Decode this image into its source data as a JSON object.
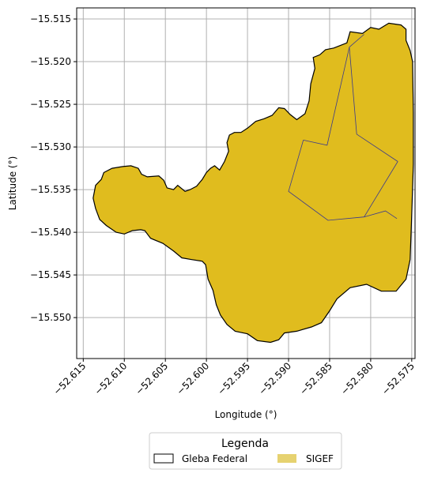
{
  "chart_data": {
    "type": "map",
    "xlabel": "Longitude (°)",
    "ylabel": "Latitude (°)",
    "xlim": [
      -52.6158,
      -52.5746
    ],
    "ylim": [
      -15.5548,
      -15.5137
    ],
    "xticks": [
      -52.615,
      -52.61,
      -52.605,
      -52.6,
      -52.595,
      -52.59,
      -52.585,
      -52.58,
      -52.575
    ],
    "xtick_labels": [
      "−52.615",
      "−52.610",
      "−52.605",
      "−52.600",
      "−52.595",
      "−52.590",
      "−52.585",
      "−52.580",
      "−52.575"
    ],
    "yticks": [
      -15.515,
      -15.52,
      -15.525,
      -15.53,
      -15.535,
      -15.54,
      -15.545,
      -15.55
    ],
    "ytick_labels": [
      "−15.515",
      "−15.520",
      "−15.525",
      "−15.530",
      "−15.535",
      "−15.540",
      "−15.545",
      "−15.550"
    ],
    "grid": true,
    "legend": {
      "title": "Legenda",
      "placement": "bottom-center",
      "entries": [
        "Gleba Federal",
        "SIGEF"
      ]
    },
    "colors": {
      "gleba_fill": "#ffffff",
      "gleba_edge": "#000000",
      "sigef_fill": "#e0bc1e",
      "sigef_legend_fill": "#e6d270",
      "parcel_edge": "#3b3a8c",
      "grid": "#b0b0b0"
    },
    "gleba_polygon": [
      [
        -52.5845,
        -15.5184
      ],
      [
        -52.5829,
        -15.5178
      ],
      [
        -52.5825,
        -15.5165
      ],
      [
        -52.581,
        -15.5167
      ],
      [
        -52.58,
        -15.516
      ],
      [
        -52.579,
        -15.5162
      ],
      [
        -52.5778,
        -15.5155
      ],
      [
        -52.5763,
        -15.5157
      ],
      [
        -52.5757,
        -15.5162
      ],
      [
        -52.5757,
        -15.5175
      ],
      [
        -52.5752,
        -15.5187
      ],
      [
        -52.5749,
        -15.52
      ],
      [
        -52.5748,
        -15.526
      ],
      [
        -52.5748,
        -15.532
      ],
      [
        -52.575,
        -15.538
      ],
      [
        -52.5752,
        -15.5432
      ],
      [
        -52.5757,
        -15.5455
      ],
      [
        -52.5769,
        -15.5469
      ],
      [
        -52.5787,
        -15.5469
      ],
      [
        -52.5805,
        -15.5461
      ],
      [
        -52.5825,
        -15.5465
      ],
      [
        -52.5841,
        -15.5478
      ],
      [
        -52.585,
        -15.5492
      ],
      [
        -52.586,
        -15.5506
      ],
      [
        -52.5872,
        -15.5511
      ],
      [
        -52.589,
        -15.5516
      ],
      [
        -52.5905,
        -15.5518
      ],
      [
        -52.5912,
        -15.5526
      ],
      [
        -52.5922,
        -15.5529
      ],
      [
        -52.5938,
        -15.5527
      ],
      [
        -52.595,
        -15.5519
      ],
      [
        -52.5965,
        -15.5516
      ],
      [
        -52.5975,
        -15.5508
      ],
      [
        -52.5983,
        -15.5497
      ],
      [
        -52.5988,
        -15.5485
      ],
      [
        -52.5992,
        -15.5468
      ],
      [
        -52.5998,
        -15.5455
      ],
      [
        -52.6001,
        -15.5438
      ],
      [
        -52.6005,
        -15.5434
      ],
      [
        -52.6018,
        -15.5432
      ],
      [
        -52.603,
        -15.543
      ],
      [
        -52.604,
        -15.5422
      ],
      [
        -52.6053,
        -15.5413
      ],
      [
        -52.6068,
        -15.5407
      ],
      [
        -52.6075,
        -15.5398
      ],
      [
        -52.608,
        -15.5397
      ],
      [
        -52.609,
        -15.5398
      ],
      [
        -52.61,
        -15.5402
      ],
      [
        -52.611,
        -15.54
      ],
      [
        -52.6122,
        -15.5392
      ],
      [
        -52.613,
        -15.5385
      ],
      [
        -52.6135,
        -15.5372
      ],
      [
        -52.6138,
        -15.536
      ],
      [
        -52.6135,
        -15.5345
      ],
      [
        -52.6128,
        -15.5338
      ],
      [
        -52.6125,
        -15.533
      ],
      [
        -52.6115,
        -15.5325
      ],
      [
        -52.6102,
        -15.5323
      ],
      [
        -52.6092,
        -15.5322
      ],
      [
        -52.6083,
        -15.5325
      ],
      [
        -52.6079,
        -15.5332
      ],
      [
        -52.6072,
        -15.5335
      ],
      [
        -52.6058,
        -15.5334
      ],
      [
        -52.6052,
        -15.5339
      ],
      [
        -52.6048,
        -15.5348
      ],
      [
        -52.604,
        -15.535
      ],
      [
        -52.6035,
        -15.5345
      ],
      [
        -52.6026,
        -15.5352
      ],
      [
        -52.602,
        -15.535
      ],
      [
        -52.6012,
        -15.5346
      ],
      [
        -52.6005,
        -15.5338
      ],
      [
        -52.6,
        -15.533
      ],
      [
        -52.5995,
        -15.5325
      ],
      [
        -52.599,
        -15.5322
      ],
      [
        -52.5984,
        -15.5327
      ],
      [
        -52.5978,
        -15.5317
      ],
      [
        -52.5973,
        -15.5305
      ],
      [
        -52.5975,
        -15.5295
      ],
      [
        -52.5972,
        -15.5286
      ],
      [
        -52.5966,
        -15.5283
      ],
      [
        -52.5958,
        -15.5283
      ],
      [
        -52.595,
        -15.5278
      ],
      [
        -52.594,
        -15.527
      ],
      [
        -52.593,
        -15.5267
      ],
      [
        -52.592,
        -15.5263
      ],
      [
        -52.5912,
        -15.5254
      ],
      [
        -52.5905,
        -15.5255
      ],
      [
        -52.5898,
        -15.5262
      ],
      [
        -52.589,
        -15.5268
      ],
      [
        -52.588,
        -15.5261
      ],
      [
        -52.5875,
        -15.5246
      ],
      [
        -52.5873,
        -15.5226
      ],
      [
        -52.5868,
        -15.5208
      ],
      [
        -52.587,
        -15.5195
      ],
      [
        -52.5862,
        -15.5192
      ],
      [
        -52.5855,
        -15.5186
      ]
    ],
    "parcel_lines": [
      [
        [
          -52.5882,
          -15.5292
        ],
        [
          -52.59,
          -15.5352
        ],
        [
          -52.5852,
          -15.5386
        ],
        [
          -52.5808,
          -15.5382
        ],
        [
          -52.5767,
          -15.5317
        ]
      ],
      [
        [
          -52.5882,
          -15.5292
        ],
        [
          -52.5853,
          -15.5298
        ],
        [
          -52.5826,
          -15.5183
        ]
      ],
      [
        [
          -52.5826,
          -15.5183
        ],
        [
          -52.5817,
          -15.5285
        ],
        [
          -52.5767,
          -15.5317
        ]
      ],
      [
        [
          -52.5808,
          -15.5382
        ],
        [
          -52.5782,
          -15.5375
        ],
        [
          -52.5768,
          -15.5384
        ]
      ],
      [
        [
          -52.5826,
          -15.5183
        ],
        [
          -52.5808,
          -15.5168
        ]
      ]
    ]
  }
}
